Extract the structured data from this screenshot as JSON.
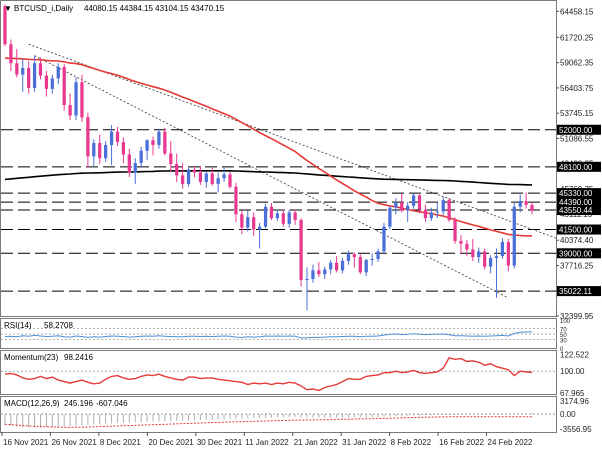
{
  "header": {
    "arrow": "▼",
    "symbol": "BTCUSD_i,Daily",
    "ohlc": "44080.15 44384.15 43104.15 43470.15"
  },
  "colors": {
    "up": "#4a6fd8",
    "down": "#e8388f",
    "ma_fast": "#e53935",
    "ma_slow": "#000000",
    "level_box": "#000000",
    "rsi": "#4a8fd8",
    "momentum": "#e53935",
    "macd_signal": "#e53935",
    "macd_hist": "#b0b0b0"
  },
  "chart_data": [
    {
      "type": "candlestick",
      "panel": "price",
      "title": "BTCUSD_i,Daily",
      "ylim": [
        32399.95,
        65550
      ],
      "x_dates": [
        "16 Nov 2021",
        "26 Nov 2021",
        "8 Dec 2021",
        "20 Dec 2021",
        "30 Dec 2021",
        "11 Jan 2022",
        "21 Jan 2022",
        "31 Jan 2022",
        "8 Feb 2022",
        "16 Feb 2022",
        "24 Feb 2022"
      ],
      "y_ticks": [
        64458.15,
        61720.25,
        59062.35,
        56403.75,
        53745.15,
        51086.55,
        48428.35,
        45769.75,
        43111.15,
        40374.4,
        37716.25,
        35057.45,
        32399.95
      ],
      "levels": [
        52000.0,
        48100.0,
        45330.0,
        43550.44,
        41500.0,
        39000.0,
        35022.11
      ],
      "box_labels": [
        "52000.00",
        "48100.00",
        "45330.00",
        "44390.00",
        "43550.44",
        "41500.00",
        "39000.00",
        "35022.11"
      ],
      "ohlc": [
        [
          65000,
          65200,
          60800,
          61000
        ],
        [
          61000,
          61500,
          58200,
          59000
        ],
        [
          59000,
          60500,
          57500,
          57800
        ],
        [
          57800,
          59500,
          56000,
          58500
        ],
        [
          58500,
          59200,
          55800,
          56400
        ],
        [
          56400,
          59800,
          56000,
          59000
        ],
        [
          59000,
          59600,
          57300,
          57700
        ],
        [
          57700,
          58200,
          55500,
          56300
        ],
        [
          56300,
          57800,
          55800,
          57400
        ],
        [
          57400,
          59000,
          56800,
          58600
        ],
        [
          58600,
          58900,
          54000,
          54600
        ],
        [
          54600,
          55800,
          53000,
          53500
        ],
        [
          53500,
          57500,
          53000,
          57000
        ],
        [
          57000,
          57800,
          52800,
          53300
        ],
        [
          53300,
          53800,
          48000,
          49200
        ],
        [
          49200,
          51000,
          48200,
          50600
        ],
        [
          50600,
          51500,
          48400,
          49000
        ],
        [
          49000,
          50800,
          48600,
          50400
        ],
        [
          50400,
          52500,
          48300,
          51800
        ],
        [
          51800,
          52300,
          50300,
          50700
        ],
        [
          50700,
          51200,
          48500,
          49400
        ],
        [
          49400,
          50000,
          47000,
          47500
        ],
        [
          47500,
          49000,
          46300,
          48500
        ],
        [
          48500,
          50200,
          48000,
          49800
        ],
        [
          49800,
          51000,
          48800,
          50900
        ],
        [
          50900,
          51300,
          49300,
          50400
        ],
        [
          50400,
          52100,
          50000,
          51800
        ],
        [
          51800,
          52200,
          49300,
          49500
        ],
        [
          49500,
          50800,
          47600,
          48400
        ],
        [
          48400,
          49500,
          46500,
          47200
        ],
        [
          47200,
          48500,
          45800,
          46300
        ],
        [
          46300,
          48100,
          46000,
          47800
        ],
        [
          47800,
          48200,
          47000,
          47500
        ],
        [
          47500,
          48200,
          46200,
          46500
        ],
        [
          46500,
          47600,
          45900,
          47400
        ],
        [
          47400,
          48000,
          46100,
          46300
        ],
        [
          46300,
          47500,
          45400,
          46900
        ],
        [
          46900,
          48000,
          46500,
          47300
        ],
        [
          47300,
          47600,
          45800,
          46000
        ],
        [
          46000,
          46400,
          42300,
          43100
        ],
        [
          43100,
          43500,
          41000,
          41700
        ],
        [
          41700,
          43500,
          41300,
          42800
        ],
        [
          42800,
          43300,
          40800,
          41500
        ],
        [
          41500,
          42200,
          39500,
          41800
        ],
        [
          41800,
          44200,
          41600,
          43900
        ],
        [
          43900,
          44300,
          42500,
          42700
        ],
        [
          42700,
          43600,
          42400,
          43200
        ],
        [
          43200,
          43600,
          41800,
          42100
        ],
        [
          42100,
          43600,
          41700,
          43300
        ],
        [
          43300,
          43600,
          42000,
          42500
        ],
        [
          42500,
          42700,
          35500,
          36200
        ],
        [
          36200,
          37500,
          33000,
          36300
        ],
        [
          36300,
          37800,
          35900,
          37200
        ],
        [
          37200,
          38100,
          36500,
          36800
        ],
        [
          36800,
          37600,
          36300,
          37300
        ],
        [
          37300,
          38300,
          36800,
          38000
        ],
        [
          38000,
          38700,
          37000,
          37200
        ],
        [
          37200,
          38500,
          36900,
          38200
        ],
        [
          38200,
          39300,
          37800,
          38900
        ],
        [
          38900,
          39100,
          37500,
          38600
        ],
        [
          38600,
          38900,
          36800,
          37000
        ],
        [
          37000,
          38400,
          36600,
          38300
        ],
        [
          38300,
          39000,
          37700,
          38400
        ],
        [
          38400,
          39500,
          38100,
          39200
        ],
        [
          39200,
          42200,
          39000,
          41800
        ],
        [
          41800,
          44000,
          41500,
          43800
        ],
        [
          43800,
          44800,
          43100,
          44300
        ],
        [
          44300,
          45300,
          43300,
          43500
        ],
        [
          43500,
          44400,
          42300,
          44000
        ],
        [
          44000,
          45300,
          43700,
          45100
        ],
        [
          45100,
          45200,
          43200,
          43600
        ],
        [
          43600,
          44100,
          42300,
          42700
        ],
        [
          42700,
          43800,
          42400,
          43300
        ],
        [
          43300,
          44300,
          42700,
          43400
        ],
        [
          43400,
          44900,
          43000,
          44600
        ],
        [
          44600,
          44800,
          42300,
          42500
        ],
        [
          42500,
          42800,
          40000,
          40300
        ],
        [
          40300,
          40900,
          38900,
          40000
        ],
        [
          40000,
          40400,
          38700,
          39400
        ],
        [
          39400,
          40500,
          38200,
          38600
        ],
        [
          38600,
          39600,
          38000,
          39200
        ],
        [
          39200,
          39500,
          37300,
          37600
        ],
        [
          37600,
          38800,
          36900,
          38500
        ],
        [
          38500,
          39500,
          34300,
          38700
        ],
        [
          38700,
          40600,
          38400,
          40200
        ],
        [
          40200,
          40500,
          37100,
          37700
        ],
        [
          37700,
          44300,
          37400,
          43900
        ],
        [
          43900,
          45200,
          43300,
          44500
        ],
        [
          44500,
          45400,
          43700,
          44100
        ],
        [
          44080.15,
          44384.15,
          43104.15,
          43470.15
        ]
      ],
      "sma_fast_period": 50,
      "sma_slow_period": 200,
      "trendlines": [
        "upper",
        "lower"
      ]
    },
    {
      "type": "line",
      "panel": "rsi",
      "label": "RSI(14)",
      "value": "58.2708",
      "ylim": [
        0,
        100
      ],
      "y_ticks": [
        "100",
        "70",
        "50",
        "30",
        "0"
      ],
      "values": [
        41,
        42,
        40,
        44,
        42,
        45,
        43,
        41,
        42,
        44,
        40,
        39,
        43,
        41,
        38,
        40,
        39,
        41,
        43,
        42,
        41,
        39,
        40,
        42,
        43,
        42,
        44,
        42,
        41,
        40,
        40,
        42,
        42,
        41,
        42,
        41,
        42,
        43,
        42,
        39,
        38,
        40,
        39,
        40,
        43,
        42,
        43,
        42,
        43,
        42,
        36,
        36,
        38,
        38,
        39,
        40,
        40,
        41,
        42,
        42,
        40,
        42,
        42,
        43,
        46,
        49,
        50,
        48,
        49,
        51,
        49,
        48,
        49,
        49,
        50,
        47,
        44,
        44,
        43,
        42,
        43,
        42,
        43,
        44,
        45,
        43,
        52,
        56,
        57,
        58.27
      ]
    },
    {
      "type": "line",
      "panel": "momentum",
      "label": "Momentum(23)",
      "value": "98.2416",
      "ylim": [
        70.6,
        124.5
      ],
      "y_ticks": [
        "122.522",
        "100.00",
        "67.965"
      ],
      "values": [
        96,
        97,
        95,
        91,
        89,
        90,
        93,
        90,
        92,
        88,
        86,
        84,
        86,
        88,
        85,
        83,
        84,
        89,
        93,
        94,
        91,
        89,
        90,
        93,
        95,
        94,
        96,
        93,
        91,
        89,
        88,
        92,
        92,
        90,
        91,
        91,
        89,
        88,
        87,
        86,
        85,
        82,
        84,
        83,
        84,
        82,
        84,
        83,
        85,
        84,
        80,
        75,
        76,
        74,
        78,
        80,
        82,
        86,
        90,
        89,
        89,
        93,
        94,
        95,
        98,
        98,
        100,
        98,
        99,
        101,
        98,
        97,
        98,
        99,
        104,
        118,
        116,
        117,
        113,
        114,
        112,
        108,
        110,
        106,
        104,
        102,
        94,
        100,
        99,
        98.24
      ]
    },
    {
      "type": "macd",
      "panel": "macd",
      "label": "MACD(12,26,9)",
      "main_value": "245.196",
      "signal_value": "-607.046",
      "ylim": [
        -4000,
        3600
      ],
      "y_ticks": [
        "3174.96",
        "0.00",
        "-3556.95"
      ],
      "signal": [
        -2400,
        -2500,
        -2600,
        -2700,
        -2800,
        -2900,
        -2950,
        -3000,
        -3050,
        -3100,
        -3150,
        -3150,
        -3100,
        -3100,
        -3050,
        -3000,
        -2950,
        -2900,
        -2850,
        -2800,
        -2750,
        -2700,
        -2650,
        -2600,
        -2550,
        -2500,
        -2450,
        -2400,
        -2350,
        -2300,
        -2250,
        -2200,
        -2150,
        -2100,
        -2050,
        -2000,
        -1950,
        -1900,
        -1860,
        -1820,
        -1780,
        -1740,
        -1700,
        -1660,
        -1620,
        -1580,
        -1540,
        -1500,
        -1460,
        -1420,
        -1400,
        -1380,
        -1360,
        -1340,
        -1310,
        -1280,
        -1250,
        -1220,
        -1190,
        -1160,
        -1130,
        -1100,
        -1070,
        -1040,
        -1000,
        -960,
        -920,
        -880,
        -840,
        -800,
        -760,
        -720,
        -690,
        -660,
        -640,
        -620,
        -610,
        -600,
        -600,
        -605,
        -610,
        -615,
        -620,
        -625,
        -630,
        -635,
        -630,
        -620,
        -612,
        -607.046
      ],
      "hist": [
        -2600,
        -2800,
        -3000,
        -3100,
        -3150,
        -3200,
        -3150,
        -3100,
        -3050,
        -3000,
        -2950,
        -2900,
        -2800,
        -2700,
        -2600,
        -2500,
        -2400,
        -2300,
        -2200,
        -2100,
        -2050,
        -2000,
        -1950,
        -1900,
        -1850,
        -1800,
        -1750,
        -1700,
        -1650,
        -1600,
        -1550,
        -1500,
        -1450,
        -1400,
        -1350,
        -1300,
        -1250,
        -1200,
        -1150,
        -1100,
        -1050,
        -1000,
        -950,
        -900,
        -850,
        -800,
        -750,
        -700,
        -650,
        -600,
        -700,
        -800,
        -850,
        -900,
        -880,
        -860,
        -840,
        -820,
        -800,
        -780,
        -760,
        -740,
        -700,
        -660,
        -600,
        -540,
        -480,
        -420,
        -380,
        -340,
        -300,
        -260,
        -230,
        -200,
        -180,
        -160,
        -140,
        -120,
        -100,
        -90,
        -80,
        -70,
        -60,
        -40,
        -20,
        0,
        80,
        150,
        200,
        245.196
      ]
    }
  ]
}
